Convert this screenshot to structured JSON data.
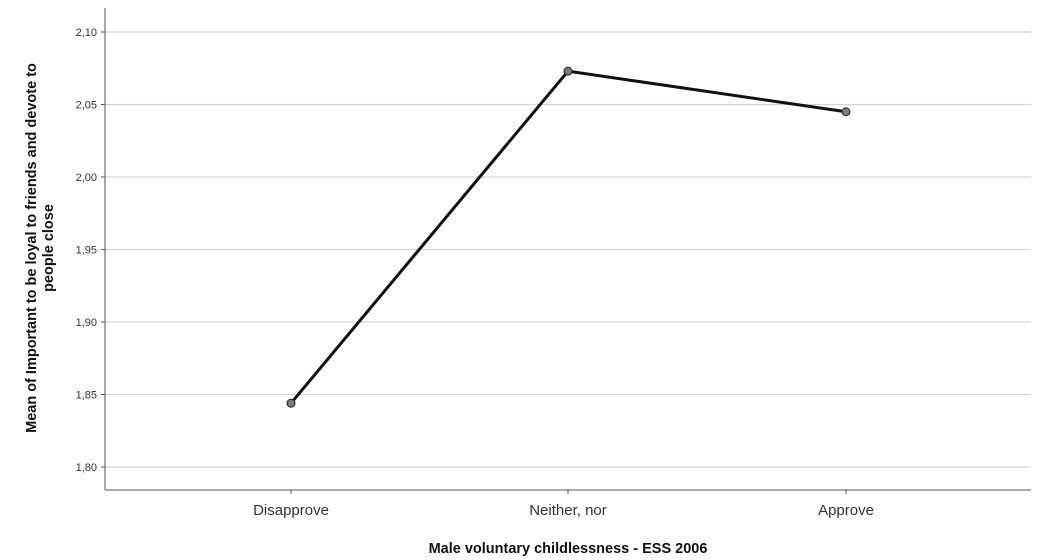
{
  "chart_data": {
    "type": "line",
    "title": "",
    "xlabel": "Male voluntary childlessness - ESS 2006",
    "ylabel_lines": [
      "Mean of Important to be loyal to friends and devote to",
      "people close"
    ],
    "categories": [
      "Disapprove",
      "Neither, nor",
      "Approve"
    ],
    "series": [
      {
        "values": [
          1.844,
          2.073,
          2.045
        ]
      }
    ],
    "ylim": [
      1.8,
      2.1
    ],
    "yticks": [
      1.8,
      1.85,
      1.9,
      1.95,
      2.0,
      2.05,
      2.1
    ],
    "ytick_labels": [
      "1,80",
      "1,85",
      "1,90",
      "1,95",
      "2,00",
      "2,05",
      "2,10"
    ],
    "grid": true,
    "legend": "none",
    "colors": {
      "line": "#111111",
      "marker_fill": "#7a7a7a",
      "grid": "#d4d4d4",
      "axis": "#555555"
    }
  }
}
